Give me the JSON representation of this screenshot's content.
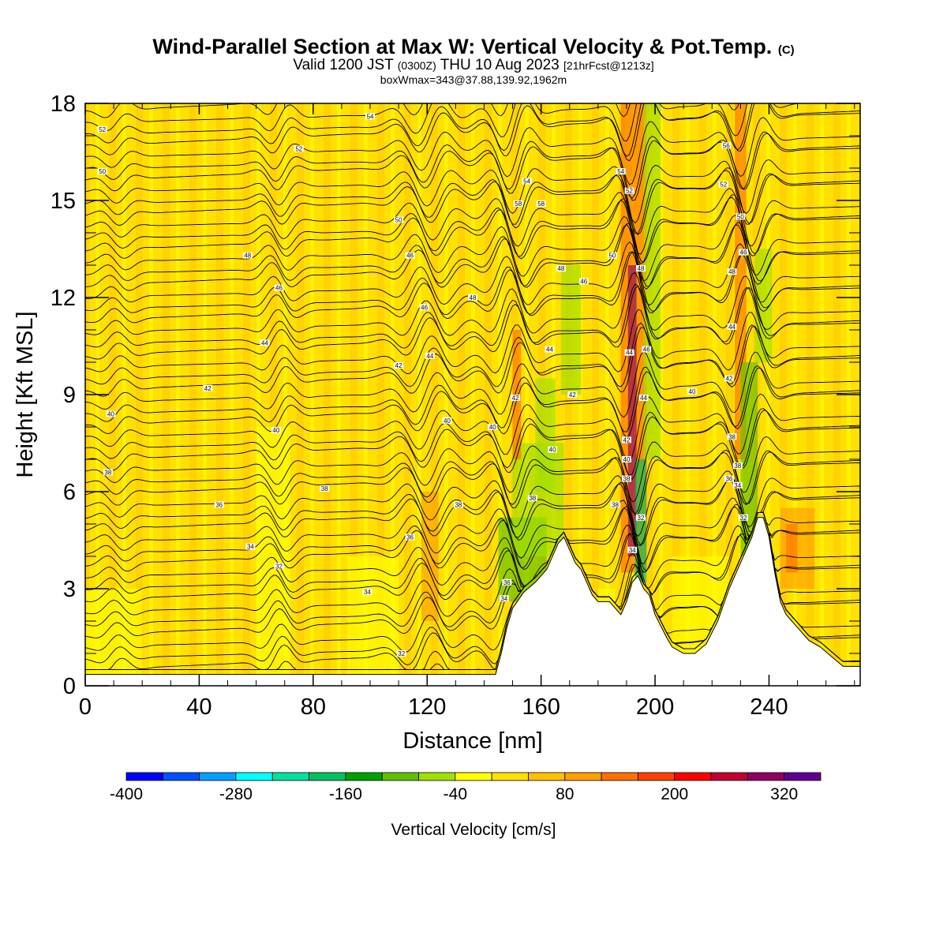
{
  "title": {
    "main": "Wind-Parallel Section at Max W: Vertical Velocity & Pot.Temp.",
    "copyright": "(C)",
    "valid_pre": "Valid 1200 JST",
    "valid_utc": "(0300Z)",
    "valid_post": "THU 10 Aug 2023",
    "forecast": "[21hrFcst@1213z]",
    "box": "boxWmax=343@37.88,139.92,1962m"
  },
  "colors": {
    "background_field": "#ffe000",
    "terrain": "#ffffff",
    "contour": "#000000"
  },
  "chart_data": {
    "type": "heatmap",
    "xlabel": "Distance [nm]",
    "ylabel": "Height [Kft MSL]",
    "xlim": [
      0,
      272
    ],
    "ylim": [
      0,
      18
    ],
    "xticks": [
      0,
      40,
      80,
      120,
      160,
      200,
      240
    ],
    "yticks": [
      0,
      3,
      6,
      9,
      12,
      15,
      18
    ],
    "colorbar": {
      "label": "Vertical Velocity [cm/s]",
      "min": -400,
      "step": 40,
      "tick_values": [
        -400,
        -280,
        -160,
        -40,
        80,
        200,
        320
      ],
      "tick_labels": [
        "-400",
        "-280",
        "-160",
        "-40",
        "80",
        "200",
        "320"
      ],
      "colors": [
        "#0000ff",
        "#0050ff",
        "#00a0ff",
        "#00ffff",
        "#00e0a0",
        "#00c060",
        "#00a000",
        "#60c000",
        "#a0e000",
        "#ffff00",
        "#ffe000",
        "#ffc000",
        "#ffa000",
        "#ff7000",
        "#ff4000",
        "#ff0000",
        "#c00030",
        "#900060",
        "#600090"
      ]
    },
    "terrain_profile": [
      [
        0,
        0.35
      ],
      [
        10,
        0.35
      ],
      [
        20,
        0.35
      ],
      [
        40,
        0.35
      ],
      [
        60,
        0.35
      ],
      [
        80,
        0.35
      ],
      [
        100,
        0.35
      ],
      [
        120,
        0.35
      ],
      [
        130,
        0.35
      ],
      [
        140,
        0.35
      ],
      [
        144,
        0.35
      ],
      [
        146,
        1.0
      ],
      [
        148,
        1.8
      ],
      [
        150,
        2.4
      ],
      [
        154,
        2.9
      ],
      [
        158,
        3.2
      ],
      [
        162,
        3.6
      ],
      [
        166,
        4.4
      ],
      [
        168,
        4.6
      ],
      [
        170,
        4.2
      ],
      [
        172,
        3.8
      ],
      [
        174,
        3.6
      ],
      [
        176,
        3.2
      ],
      [
        178,
        2.8
      ],
      [
        180,
        2.6
      ],
      [
        184,
        2.6
      ],
      [
        186,
        2.4
      ],
      [
        188,
        2.2
      ],
      [
        190,
        2.6
      ],
      [
        192,
        3.2
      ],
      [
        194,
        3.4
      ],
      [
        195,
        3.2
      ],
      [
        196,
        3.0
      ],
      [
        198,
        2.8
      ],
      [
        200,
        2.2
      ],
      [
        204,
        1.5
      ],
      [
        206,
        1.2
      ],
      [
        210,
        1.0
      ],
      [
        214,
        1.0
      ],
      [
        218,
        1.3
      ],
      [
        222,
        2.0
      ],
      [
        226,
        3.0
      ],
      [
        230,
        3.8
      ],
      [
        234,
        4.6
      ],
      [
        236,
        5.2
      ],
      [
        238,
        5.2
      ],
      [
        240,
        4.6
      ],
      [
        242,
        3.5
      ],
      [
        244,
        2.6
      ],
      [
        246,
        2.2
      ],
      [
        250,
        1.8
      ],
      [
        254,
        1.4
      ],
      [
        258,
        1.2
      ],
      [
        262,
        0.9
      ],
      [
        266,
        0.6
      ],
      [
        272,
        0.6
      ]
    ],
    "theta_contour_labels": [
      [
        6,
        17.2,
        "52"
      ],
      [
        6,
        15.9,
        "50"
      ],
      [
        75,
        16.6,
        "52"
      ],
      [
        100,
        17.6,
        "54"
      ],
      [
        57,
        13.3,
        "48"
      ],
      [
        68,
        12.3,
        "46"
      ],
      [
        63,
        10.6,
        "44"
      ],
      [
        43,
        9.2,
        "42"
      ],
      [
        9,
        8.4,
        "40"
      ],
      [
        67,
        7.9,
        "40"
      ],
      [
        110,
        9.9,
        "42"
      ],
      [
        121,
        10.2,
        "44"
      ],
      [
        119,
        11.7,
        "46"
      ],
      [
        136,
        12.0,
        "48"
      ],
      [
        114,
        13.3,
        "46"
      ],
      [
        110,
        14.4,
        "50"
      ],
      [
        8,
        6.6,
        "38"
      ],
      [
        84,
        6.1,
        "38"
      ],
      [
        47,
        5.6,
        "36"
      ],
      [
        131,
        5.6,
        "38"
      ],
      [
        114,
        4.6,
        "36"
      ],
      [
        58,
        4.3,
        "34"
      ],
      [
        68,
        3.7,
        "32"
      ],
      [
        99,
        2.9,
        "34"
      ],
      [
        111,
        1.0,
        "32"
      ],
      [
        127,
        8.2,
        "40"
      ],
      [
        143,
        8.0,
        "40"
      ],
      [
        151,
        8.9,
        "42"
      ],
      [
        157,
        5.8,
        "38"
      ],
      [
        164,
        7.3,
        "40"
      ],
      [
        163,
        10.4,
        "44"
      ],
      [
        167,
        12.9,
        "48"
      ],
      [
        152,
        14.9,
        "58"
      ],
      [
        155,
        15.6,
        "54"
      ],
      [
        160,
        14.9,
        "58"
      ],
      [
        175,
        12.5,
        "46"
      ],
      [
        148,
        3.2,
        "36"
      ],
      [
        147,
        2.7,
        "34"
      ],
      [
        186,
        5.6,
        "38"
      ],
      [
        190,
        6.4,
        "38"
      ],
      [
        190,
        7.0,
        "40"
      ],
      [
        190,
        7.6,
        "42"
      ],
      [
        192,
        4.2,
        "34"
      ],
      [
        195,
        5.2,
        "32"
      ],
      [
        191,
        10.3,
        "44"
      ],
      [
        196,
        8.9,
        "44"
      ],
      [
        197,
        10.4,
        "46"
      ],
      [
        195,
        12.9,
        "48"
      ],
      [
        185,
        13.3,
        "50"
      ],
      [
        191,
        15.3,
        "52"
      ],
      [
        188,
        15.9,
        "54"
      ],
      [
        171,
        9.0,
        "42"
      ],
      [
        213,
        9.1,
        "40"
      ],
      [
        226,
        6.4,
        "36"
      ],
      [
        227,
        7.7,
        "38"
      ],
      [
        229,
        6.8,
        "38"
      ],
      [
        229,
        6.2,
        "34"
      ],
      [
        231,
        5.2,
        "32"
      ],
      [
        226,
        9.5,
        "42"
      ],
      [
        227,
        11.1,
        "44"
      ],
      [
        227,
        12.8,
        "48"
      ],
      [
        230,
        14.5,
        "50"
      ],
      [
        224,
        15.5,
        "52"
      ],
      [
        225,
        16.7,
        "56"
      ],
      [
        231,
        13.4,
        "46"
      ]
    ]
  }
}
